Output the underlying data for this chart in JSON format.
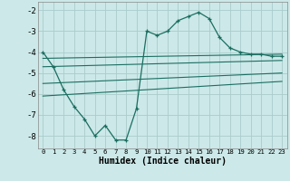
{
  "xlabel": "Humidex (Indice chaleur)",
  "background_color": "#cce8e8",
  "grid_color": "#aacccc",
  "line_color": "#1a6e60",
  "xlim": [
    -0.5,
    23.5
  ],
  "ylim": [
    -8.6,
    -1.6
  ],
  "yticks": [
    -8,
    -7,
    -6,
    -5,
    -4,
    -3,
    -2
  ],
  "xticks": [
    0,
    1,
    2,
    3,
    4,
    5,
    6,
    7,
    8,
    9,
    10,
    11,
    12,
    13,
    14,
    15,
    16,
    17,
    18,
    19,
    20,
    21,
    22,
    23
  ],
  "line1_x": [
    0,
    1,
    2,
    3,
    4,
    5,
    6,
    7,
    8,
    9,
    10,
    11,
    12,
    13,
    14,
    15,
    16,
    17,
    18,
    19,
    20,
    21,
    22,
    23
  ],
  "line1_y": [
    -4.0,
    -4.7,
    -5.8,
    -6.6,
    -7.2,
    -8.0,
    -7.5,
    -8.2,
    -8.2,
    -6.7,
    -3.0,
    -3.2,
    -3.0,
    -2.5,
    -2.3,
    -2.1,
    -2.4,
    -3.3,
    -3.8,
    -4.0,
    -4.1,
    -4.1,
    -4.2,
    -4.2
  ],
  "line2_x": [
    0,
    23
  ],
  "line2_y": [
    -4.3,
    -4.1
  ],
  "line3_x": [
    0,
    23
  ],
  "line3_y": [
    -4.7,
    -4.4
  ],
  "line4_x": [
    0,
    23
  ],
  "line4_y": [
    -5.5,
    -5.0
  ],
  "line5_x": [
    0,
    23
  ],
  "line5_y": [
    -6.1,
    -5.4
  ]
}
